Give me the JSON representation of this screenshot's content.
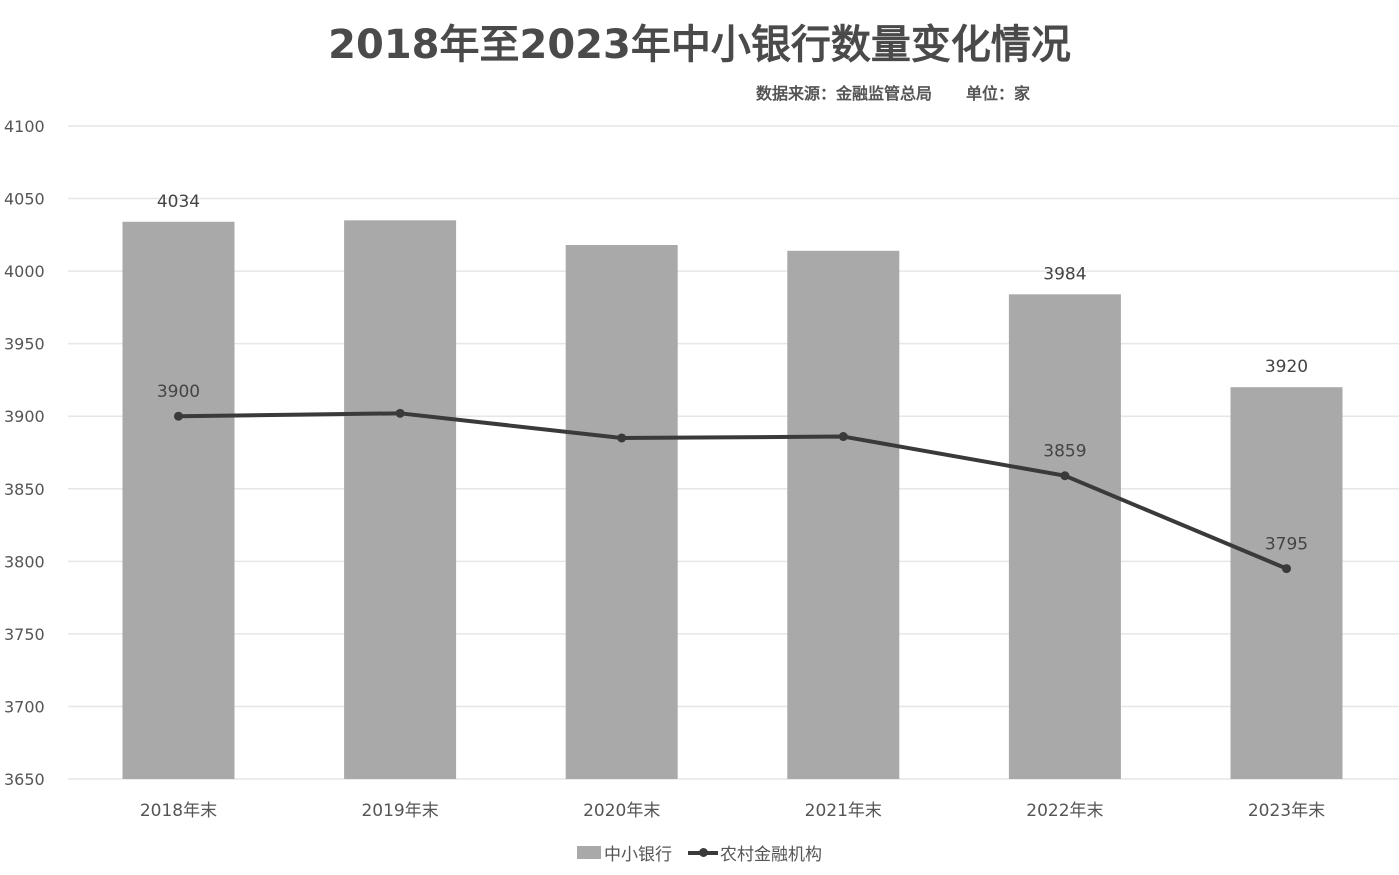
{
  "chart_data": {
    "type": "bar+line",
    "title": "2018年至2023年中小银行数量变化情况",
    "subtitle": {
      "source": "数据来源：金融监管总局",
      "unit": "单位：家"
    },
    "categories": [
      "2018年末",
      "2019年末",
      "2020年末",
      "2021年末",
      "2022年末",
      "2023年末"
    ],
    "series": [
      {
        "name": "中小银行",
        "type": "bar",
        "color": "#a9a9a9",
        "values": [
          4034,
          4035,
          4018,
          4014,
          3984,
          3920
        ],
        "labels": [
          "4034",
          "",
          "",
          "",
          "3984",
          "3920"
        ]
      },
      {
        "name": "农村金融机构",
        "type": "line",
        "color": "#3a3a3a",
        "values": [
          3900,
          3902,
          3885,
          3886,
          3859,
          3795
        ],
        "labels": [
          "3900",
          "",
          "",
          "",
          "3859",
          "3795"
        ]
      }
    ],
    "yticks": [
      4100,
      4050,
      4000,
      3950,
      3900,
      3850,
      3800,
      3750,
      3700,
      3650
    ],
    "ylim": [
      3650,
      4100
    ],
    "xlabel": "",
    "ylabel": "",
    "grid": true,
    "legend_position": "bottom"
  },
  "legend": {
    "bar_label": "中小银行",
    "line_label": "农村金融机构"
  }
}
